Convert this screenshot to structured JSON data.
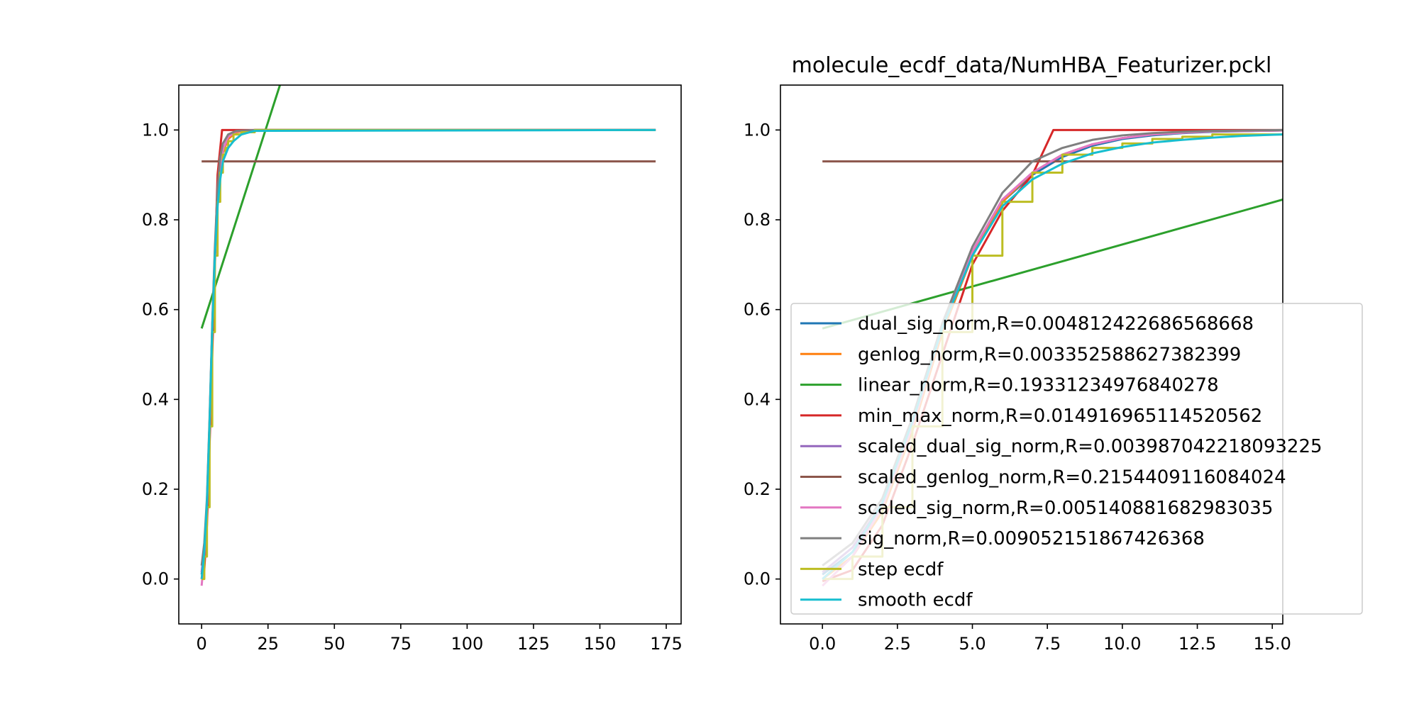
{
  "chart_data": [
    {
      "type": "line",
      "title": "",
      "xlabel": "",
      "ylabel": "",
      "xlim": [
        -8.6,
        180.6
      ],
      "ylim": [
        -0.1,
        1.1
      ],
      "xticks": [
        "0",
        "25",
        "50",
        "75",
        "100",
        "125",
        "150",
        "175"
      ],
      "yticks": [
        "0.0",
        "0.2",
        "0.4",
        "0.6",
        "0.8",
        "1.0"
      ],
      "grid": false,
      "legend": null,
      "series": [
        {
          "key": "dual_sig_norm",
          "color": "#1f77b4",
          "points": [
            [
              0,
              0.01
            ],
            [
              1,
              0.06
            ],
            [
              2,
              0.16
            ],
            [
              3,
              0.34
            ],
            [
              4,
              0.55
            ],
            [
              5,
              0.72
            ],
            [
              6,
              0.84
            ],
            [
              7,
              0.91
            ],
            [
              8,
              0.95
            ],
            [
              10,
              0.98
            ],
            [
              13,
              0.995
            ],
            [
              20,
              1.0
            ],
            [
              171,
              1.0
            ]
          ]
        },
        {
          "key": "genlog_norm",
          "color": "#ff7f0e",
          "points": [
            [
              0,
              0.0
            ],
            [
              1,
              0.05
            ],
            [
              2,
              0.15
            ],
            [
              3,
              0.33
            ],
            [
              4,
              0.55
            ],
            [
              5,
              0.72
            ],
            [
              6,
              0.84
            ],
            [
              7,
              0.91
            ],
            [
              8,
              0.95
            ],
            [
              10,
              0.98
            ],
            [
              13,
              0.995
            ],
            [
              20,
              1.0
            ],
            [
              171,
              1.0
            ]
          ]
        },
        {
          "key": "linear_norm",
          "color": "#2ca02c",
          "points": [
            [
              0,
              0.558
            ],
            [
              29.5,
              1.1
            ]
          ]
        },
        {
          "key": "min_max_norm",
          "color": "#d62728",
          "points": [
            [
              0,
              0.0
            ],
            [
              1,
              0.02
            ],
            [
              2,
              0.12
            ],
            [
              3,
              0.3
            ],
            [
              4,
              0.5
            ],
            [
              5,
              0.7
            ],
            [
              6,
              0.9
            ],
            [
              7.7,
              1.0
            ],
            [
              171,
              1.0
            ]
          ]
        },
        {
          "key": "scaled_dual_sig_norm",
          "color": "#9467bd",
          "points": [
            [
              0,
              0.015
            ],
            [
              1,
              0.07
            ],
            [
              2,
              0.17
            ],
            [
              3,
              0.35
            ],
            [
              4,
              0.56
            ],
            [
              5,
              0.73
            ],
            [
              6,
              0.85
            ],
            [
              7,
              0.92
            ],
            [
              8,
              0.955
            ],
            [
              10,
              0.985
            ],
            [
              13,
              0.997
            ],
            [
              20,
              1.0
            ],
            [
              171,
              1.0
            ]
          ]
        },
        {
          "key": "scaled_genlog_norm",
          "color": "#8c564b",
          "points": [
            [
              0,
              0.93
            ],
            [
              171,
              0.93
            ]
          ]
        },
        {
          "key": "scaled_sig_norm",
          "color": "#e377c2",
          "points": [
            [
              0,
              -0.015
            ],
            [
              1,
              0.05
            ],
            [
              2,
              0.16
            ],
            [
              3,
              0.34
            ],
            [
              4,
              0.56
            ],
            [
              5,
              0.73
            ],
            [
              6,
              0.85
            ],
            [
              7,
              0.92
            ],
            [
              8,
              0.955
            ],
            [
              10,
              0.985
            ],
            [
              13,
              0.997
            ],
            [
              20,
              1.0
            ],
            [
              171,
              1.0
            ]
          ]
        },
        {
          "key": "sig_norm",
          "color": "#7f7f7f",
          "points": [
            [
              0,
              0.03
            ],
            [
              1,
              0.08
            ],
            [
              2,
              0.18
            ],
            [
              3,
              0.36
            ],
            [
              4,
              0.57
            ],
            [
              5,
              0.74
            ],
            [
              6,
              0.87
            ],
            [
              7,
              0.94
            ],
            [
              8,
              0.97
            ],
            [
              10,
              0.99
            ],
            [
              13,
              0.998
            ],
            [
              20,
              1.0
            ],
            [
              171,
              1.0
            ]
          ]
        },
        {
          "key": "step_ecdf",
          "color": "#bcbd22",
          "step": true,
          "points": [
            [
              0,
              0.0
            ],
            [
              1,
              0.05
            ],
            [
              2,
              0.16
            ],
            [
              3,
              0.34
            ],
            [
              4,
              0.55
            ],
            [
              5,
              0.72
            ],
            [
              6,
              0.84
            ],
            [
              7,
              0.905
            ],
            [
              8,
              0.945
            ],
            [
              9,
              0.96
            ],
            [
              10,
              0.975
            ],
            [
              12,
              0.99
            ],
            [
              15,
              0.995
            ],
            [
              20,
              1.0
            ],
            [
              171,
              1.0
            ]
          ]
        },
        {
          "key": "smooth_ecdf",
          "color": "#17becf",
          "points": [
            [
              0,
              0.0
            ],
            [
              1,
              0.06
            ],
            [
              2,
              0.17
            ],
            [
              3,
              0.35
            ],
            [
              4,
              0.56
            ],
            [
              5,
              0.72
            ],
            [
              6,
              0.83
            ],
            [
              7,
              0.89
            ],
            [
              8,
              0.93
            ],
            [
              10,
              0.96
            ],
            [
              12,
              0.975
            ],
            [
              15,
              0.99
            ],
            [
              20,
              0.998
            ],
            [
              171,
              1.0
            ]
          ]
        }
      ]
    },
    {
      "type": "line",
      "title": "molecule_ecdf_data/NumHBA_Featurizer.pckl",
      "xlabel": "",
      "ylabel": "",
      "xlim": [
        -1.4,
        15.35
      ],
      "ylim": [
        -0.1,
        1.1
      ],
      "xticks": [
        "0.0",
        "2.5",
        "5.0",
        "7.5",
        "10.0",
        "12.5",
        "15.0"
      ],
      "yticks": [
        "0.0",
        "0.2",
        "0.4",
        "0.6",
        "0.8",
        "1.0"
      ],
      "grid": false,
      "legend": "lower-right",
      "series": [
        {
          "key": "dual_sig_norm",
          "name": "dual_sig_norm,R=0.004812422686568668",
          "color": "#1f77b4",
          "points": [
            [
              0,
              0.01
            ],
            [
              1,
              0.06
            ],
            [
              2,
              0.16
            ],
            [
              3,
              0.34
            ],
            [
              4,
              0.55
            ],
            [
              5,
              0.72
            ],
            [
              6,
              0.84
            ],
            [
              7,
              0.9
            ],
            [
              8,
              0.94
            ],
            [
              9,
              0.965
            ],
            [
              10,
              0.98
            ],
            [
              11,
              0.988
            ],
            [
              12,
              0.993
            ],
            [
              13,
              0.996
            ],
            [
              15.35,
              0.999
            ]
          ]
        },
        {
          "key": "genlog_norm",
          "name": "genlog_norm,R=0.003352588627382399",
          "color": "#ff7f0e",
          "points": [
            [
              0,
              0.0
            ],
            [
              1,
              0.05
            ],
            [
              2,
              0.15
            ],
            [
              3,
              0.33
            ],
            [
              4,
              0.55
            ],
            [
              5,
              0.72
            ],
            [
              6,
              0.84
            ],
            [
              7,
              0.905
            ],
            [
              8,
              0.945
            ],
            [
              9,
              0.968
            ],
            [
              10,
              0.982
            ],
            [
              11,
              0.99
            ],
            [
              12,
              0.994
            ],
            [
              13,
              0.997
            ],
            [
              15.35,
              0.999
            ]
          ]
        },
        {
          "key": "linear_norm",
          "name": "linear_norm,R=0.19331234976840278",
          "color": "#2ca02c",
          "points": [
            [
              0,
              0.558
            ],
            [
              15.35,
              0.845
            ]
          ]
        },
        {
          "key": "min_max_norm",
          "name": "min_max_norm,R=0.014916965114520562",
          "color": "#d62728",
          "points": [
            [
              0,
              -0.005
            ],
            [
              1,
              0.02
            ],
            [
              2,
              0.12
            ],
            [
              3,
              0.3
            ],
            [
              4,
              0.5
            ],
            [
              5,
              0.7
            ],
            [
              6,
              0.82
            ],
            [
              7,
              0.9
            ],
            [
              7.7,
              1.0
            ],
            [
              15.35,
              1.0
            ]
          ]
        },
        {
          "key": "scaled_dual_sig_norm",
          "name": "scaled_dual_sig_norm,R=0.003987042218093225",
          "color": "#9467bd",
          "points": [
            [
              0,
              0.015
            ],
            [
              1,
              0.07
            ],
            [
              2,
              0.17
            ],
            [
              3,
              0.35
            ],
            [
              4,
              0.56
            ],
            [
              5,
              0.73
            ],
            [
              6,
              0.845
            ],
            [
              7,
              0.905
            ],
            [
              8,
              0.945
            ],
            [
              9,
              0.968
            ],
            [
              10,
              0.982
            ],
            [
              11,
              0.99
            ],
            [
              12,
              0.994
            ],
            [
              13,
              0.997
            ],
            [
              15.35,
              0.999
            ]
          ]
        },
        {
          "key": "scaled_genlog_norm",
          "name": "scaled_genlog_norm,R=0.2154409116084024",
          "color": "#8c564b",
          "points": [
            [
              0,
              0.93
            ],
            [
              15.35,
              0.93
            ]
          ]
        },
        {
          "key": "scaled_sig_norm",
          "name": "scaled_sig_norm,R=0.005140881682983035",
          "color": "#e377c2",
          "points": [
            [
              0,
              -0.015
            ],
            [
              1,
              0.05
            ],
            [
              2,
              0.16
            ],
            [
              3,
              0.34
            ],
            [
              4,
              0.56
            ],
            [
              5,
              0.73
            ],
            [
              6,
              0.845
            ],
            [
              7,
              0.905
            ],
            [
              8,
              0.945
            ],
            [
              9,
              0.968
            ],
            [
              10,
              0.982
            ],
            [
              11,
              0.99
            ],
            [
              12,
              0.994
            ],
            [
              13,
              0.997
            ],
            [
              15.35,
              0.999
            ]
          ]
        },
        {
          "key": "sig_norm",
          "name": "sig_norm,R=0.009052151867426368",
          "color": "#7f7f7f",
          "points": [
            [
              0,
              0.03
            ],
            [
              1,
              0.08
            ],
            [
              2,
              0.18
            ],
            [
              3,
              0.36
            ],
            [
              4,
              0.57
            ],
            [
              5,
              0.74
            ],
            [
              6,
              0.86
            ],
            [
              7,
              0.93
            ],
            [
              8,
              0.96
            ],
            [
              9,
              0.978
            ],
            [
              10,
              0.988
            ],
            [
              11,
              0.993
            ],
            [
              12,
              0.996
            ],
            [
              13,
              0.998
            ],
            [
              15.35,
              1.0
            ]
          ]
        },
        {
          "key": "step_ecdf",
          "name": "step ecdf",
          "color": "#bcbd22",
          "step": true,
          "points": [
            [
              0,
              0.0
            ],
            [
              1,
              0.05
            ],
            [
              2,
              0.16
            ],
            [
              3,
              0.34
            ],
            [
              4,
              0.55
            ],
            [
              5,
              0.72
            ],
            [
              6,
              0.84
            ],
            [
              7,
              0.905
            ],
            [
              8,
              0.945
            ],
            [
              9,
              0.96
            ],
            [
              10,
              0.97
            ],
            [
              11,
              0.98
            ],
            [
              12,
              0.985
            ],
            [
              13,
              0.99
            ],
            [
              15.35,
              0.99
            ]
          ]
        },
        {
          "key": "smooth_ecdf",
          "name": "smooth ecdf",
          "color": "#17becf",
          "points": [
            [
              0,
              0.0
            ],
            [
              1,
              0.06
            ],
            [
              2,
              0.17
            ],
            [
              3,
              0.35
            ],
            [
              4,
              0.56
            ],
            [
              5,
              0.72
            ],
            [
              6,
              0.83
            ],
            [
              7,
              0.89
            ],
            [
              8,
              0.925
            ],
            [
              9,
              0.948
            ],
            [
              10,
              0.962
            ],
            [
              11,
              0.972
            ],
            [
              12,
              0.978
            ],
            [
              13,
              0.983
            ],
            [
              14,
              0.987
            ],
            [
              15.35,
              0.99
            ]
          ]
        }
      ]
    }
  ]
}
